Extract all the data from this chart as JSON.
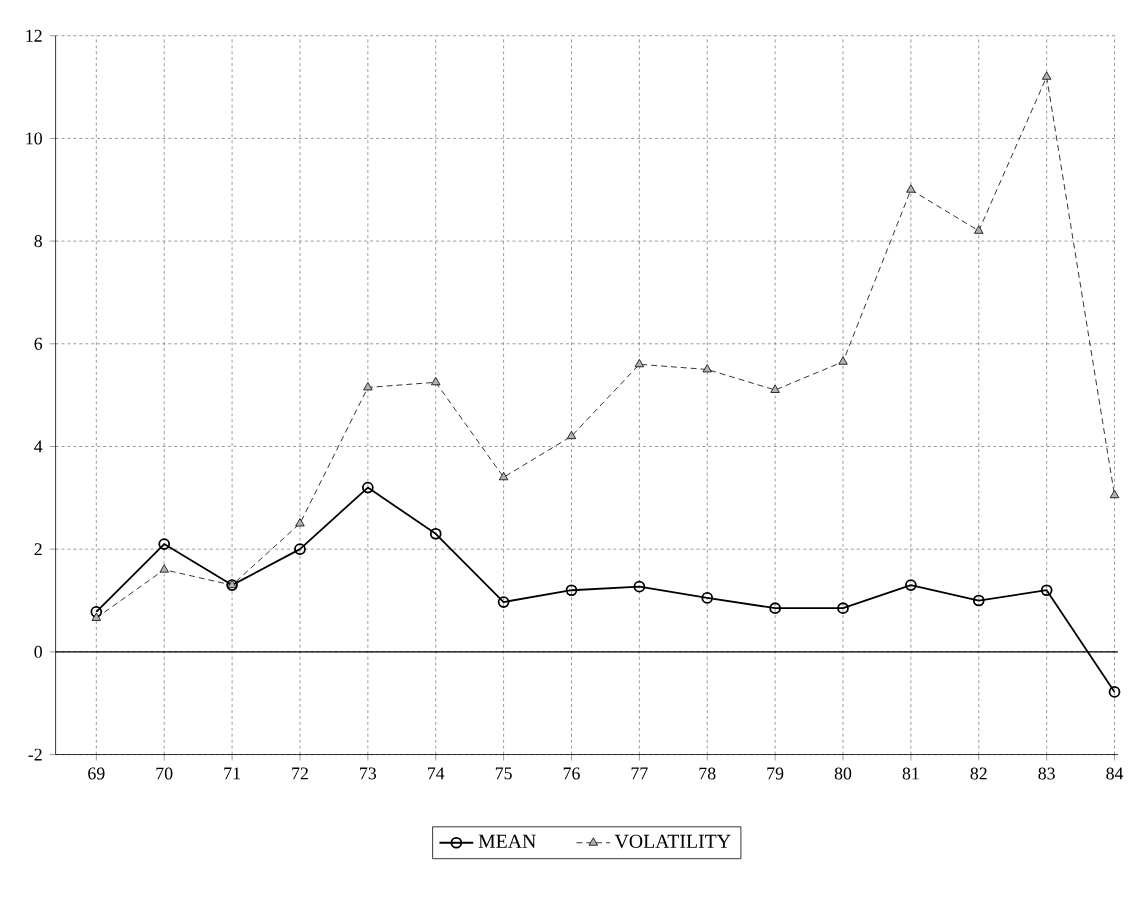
{
  "chart_data": {
    "type": "line",
    "x": [
      69,
      70,
      71,
      72,
      73,
      74,
      75,
      76,
      77,
      78,
      79,
      80,
      81,
      82,
      83,
      84
    ],
    "series": [
      {
        "name": "MEAN",
        "color": "#000000",
        "marker": "circle",
        "line_style": "solid",
        "values": [
          0.78,
          2.1,
          1.3,
          2.0,
          3.2,
          2.3,
          0.97,
          1.2,
          1.27,
          1.05,
          0.85,
          0.85,
          1.3,
          1.0,
          1.2,
          -0.78
        ]
      },
      {
        "name": "VOLATILITY",
        "color": "#000000",
        "marker": "triangle",
        "line_style": "dashed",
        "values": [
          0.66,
          1.6,
          1.3,
          2.5,
          5.15,
          5.25,
          3.4,
          4.2,
          5.6,
          5.5,
          5.1,
          5.65,
          9.0,
          8.2,
          11.2,
          3.05
        ]
      }
    ],
    "xlim": [
      68.4,
      84.05
    ],
    "xticks": [
      69,
      70,
      71,
      72,
      73,
      74,
      75,
      76,
      77,
      78,
      79,
      80,
      81,
      82,
      83,
      84
    ],
    "ylim": [
      -2,
      12
    ],
    "yticks": [
      -2,
      0,
      2,
      4,
      6,
      8,
      10,
      12
    ],
    "ref_lines": [
      {
        "axis": "y",
        "value": 0
      }
    ],
    "grid": true,
    "legend": "bottom"
  }
}
